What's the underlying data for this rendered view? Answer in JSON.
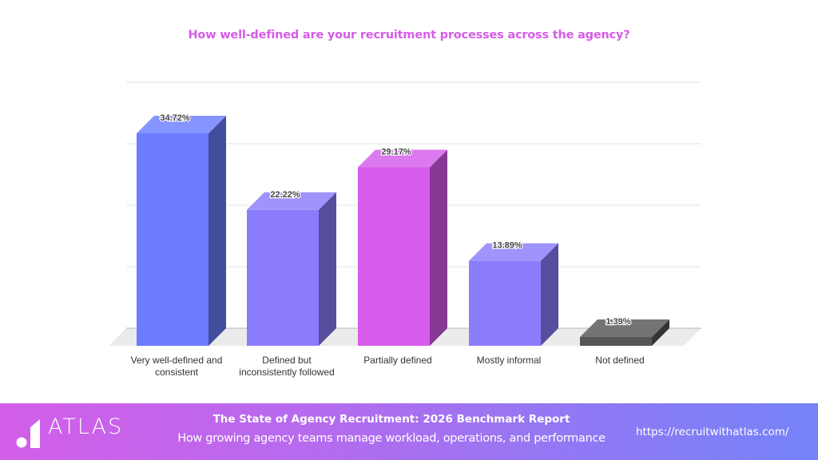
{
  "header": {
    "title": "How well-defined are your recruitment processes across the agency?"
  },
  "chart_data": {
    "type": "bar",
    "style": "3d",
    "title": "How well-defined are your recruitment processes across the agency?",
    "categories": [
      "Very well-defined and consistent",
      "Defined but inconsistently followed",
      "Partially defined",
      "Mostly informal",
      "Not defined"
    ],
    "values": [
      34.72,
      22.22,
      29.17,
      13.89,
      1.39
    ],
    "value_labels": [
      "34.72%",
      "22.22%",
      "29.17%",
      "13.89%",
      "1.39%"
    ],
    "colors": [
      "#6b7cff",
      "#8a7cfb",
      "#d65ceb",
      "#8a7cfb",
      "#555555"
    ],
    "xlabel": "",
    "ylabel": "",
    "ylim": [
      0,
      40
    ],
    "grid": true,
    "legend": "none"
  },
  "xlabels": [
    [
      "Very well-defined and",
      "consistent"
    ],
    [
      "Defined but",
      "inconsistently followed"
    ],
    [
      "Partially defined",
      ""
    ],
    [
      "Mostly informal",
      ""
    ],
    [
      "Not defined",
      ""
    ]
  ],
  "footer": {
    "logo_text": "ATLAS",
    "title": "The State of Agency Recruitment: 2026 Benchmark Report",
    "subtitle": "How growing agency teams manage workload, operations, and performance",
    "url": "https://recruitwithatlas.com/"
  }
}
